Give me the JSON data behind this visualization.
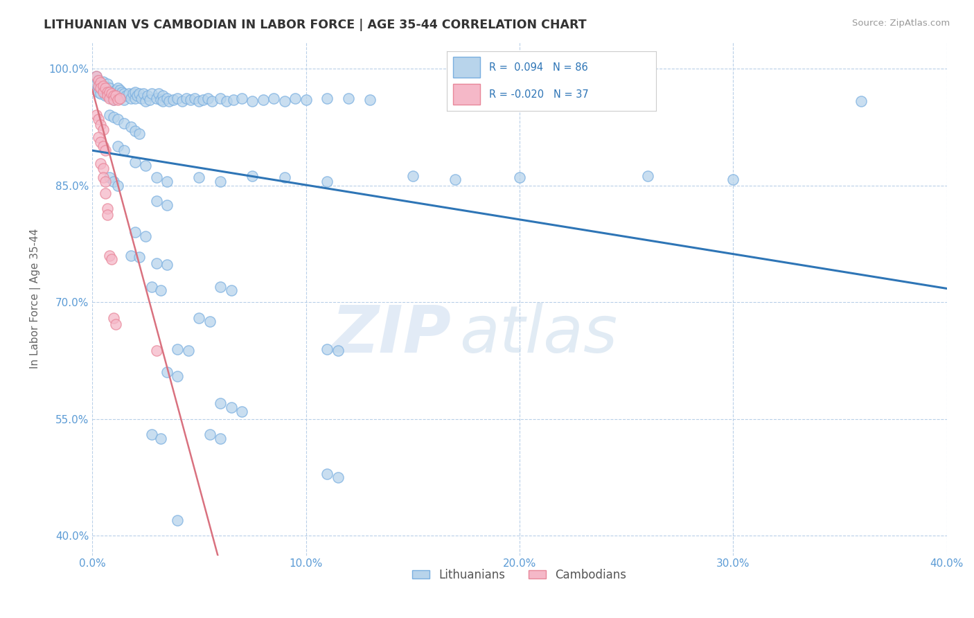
{
  "title": "LITHUANIAN VS CAMBODIAN IN LABOR FORCE | AGE 35-44 CORRELATION CHART",
  "source": "Source: ZipAtlas.com",
  "ylabel": "In Labor Force | Age 35-44",
  "xlim": [
    0.0,
    0.4
  ],
  "ylim": [
    0.375,
    1.035
  ],
  "yticks": [
    0.4,
    0.55,
    0.7,
    0.85,
    1.0
  ],
  "ytick_labels": [
    "40.0%",
    "55.0%",
    "70.0%",
    "85.0%",
    "100.0%"
  ],
  "xticks": [
    0.0,
    0.1,
    0.2,
    0.3,
    0.4
  ],
  "xtick_labels": [
    "0.0%",
    "10.0%",
    "20.0%",
    "30.0%",
    "40.0%"
  ],
  "axis_color": "#5b9bd5",
  "blue_color_face": "#b8d4eb",
  "blue_color_edge": "#7aafe0",
  "pink_color_face": "#f5b8c8",
  "pink_color_edge": "#e8879a",
  "blue_line_color": "#2e75b6",
  "pink_line_color": "#d9717f",
  "watermark_zip_color": "#d0dff0",
  "watermark_atlas_color": "#c5d8ea",
  "legend_r_color": "#2e75b6",
  "blue_scatter": [
    [
      0.002,
      0.99
    ],
    [
      0.002,
      0.98
    ],
    [
      0.003,
      0.985
    ],
    [
      0.003,
      0.975
    ],
    [
      0.003,
      0.97
    ],
    [
      0.004,
      0.98
    ],
    [
      0.004,
      0.968
    ],
    [
      0.005,
      0.978
    ],
    [
      0.005,
      0.983
    ],
    [
      0.006,
      0.975
    ],
    [
      0.006,
      0.965
    ],
    [
      0.007,
      0.972
    ],
    [
      0.007,
      0.98
    ],
    [
      0.008,
      0.965
    ],
    [
      0.008,
      0.975
    ],
    [
      0.009,
      0.97
    ],
    [
      0.009,
      0.962
    ],
    [
      0.01,
      0.968
    ],
    [
      0.01,
      0.96
    ],
    [
      0.011,
      0.965
    ],
    [
      0.011,
      0.972
    ],
    [
      0.012,
      0.975
    ],
    [
      0.012,
      0.968
    ],
    [
      0.013,
      0.972
    ],
    [
      0.014,
      0.97
    ],
    [
      0.015,
      0.968
    ],
    [
      0.015,
      0.96
    ],
    [
      0.016,
      0.965
    ],
    [
      0.017,
      0.968
    ],
    [
      0.018,
      0.962
    ],
    [
      0.019,
      0.968
    ],
    [
      0.02,
      0.962
    ],
    [
      0.02,
      0.97
    ],
    [
      0.021,
      0.965
    ],
    [
      0.022,
      0.968
    ],
    [
      0.023,
      0.962
    ],
    [
      0.024,
      0.968
    ],
    [
      0.025,
      0.958
    ],
    [
      0.026,
      0.965
    ],
    [
      0.027,
      0.96
    ],
    [
      0.028,
      0.968
    ],
    [
      0.03,
      0.962
    ],
    [
      0.031,
      0.968
    ],
    [
      0.032,
      0.96
    ],
    [
      0.033,
      0.965
    ],
    [
      0.033,
      0.958
    ],
    [
      0.035,
      0.962
    ],
    [
      0.036,
      0.958
    ],
    [
      0.038,
      0.96
    ],
    [
      0.04,
      0.962
    ],
    [
      0.042,
      0.958
    ],
    [
      0.044,
      0.962
    ],
    [
      0.046,
      0.96
    ],
    [
      0.048,
      0.962
    ],
    [
      0.05,
      0.958
    ],
    [
      0.052,
      0.96
    ],
    [
      0.054,
      0.962
    ],
    [
      0.056,
      0.958
    ],
    [
      0.06,
      0.962
    ],
    [
      0.063,
      0.958
    ],
    [
      0.066,
      0.96
    ],
    [
      0.07,
      0.962
    ],
    [
      0.075,
      0.958
    ],
    [
      0.08,
      0.96
    ],
    [
      0.085,
      0.962
    ],
    [
      0.09,
      0.958
    ],
    [
      0.095,
      0.962
    ],
    [
      0.1,
      0.96
    ],
    [
      0.11,
      0.962
    ],
    [
      0.12,
      0.962
    ],
    [
      0.13,
      0.96
    ],
    [
      0.008,
      0.94
    ],
    [
      0.01,
      0.938
    ],
    [
      0.012,
      0.935
    ],
    [
      0.015,
      0.93
    ],
    [
      0.018,
      0.925
    ],
    [
      0.02,
      0.92
    ],
    [
      0.022,
      0.916
    ],
    [
      0.012,
      0.9
    ],
    [
      0.015,
      0.895
    ],
    [
      0.02,
      0.88
    ],
    [
      0.025,
      0.875
    ],
    [
      0.008,
      0.86
    ],
    [
      0.01,
      0.855
    ],
    [
      0.012,
      0.85
    ],
    [
      0.03,
      0.86
    ],
    [
      0.035,
      0.855
    ],
    [
      0.05,
      0.86
    ],
    [
      0.06,
      0.855
    ],
    [
      0.075,
      0.862
    ],
    [
      0.09,
      0.86
    ],
    [
      0.11,
      0.855
    ],
    [
      0.15,
      0.862
    ],
    [
      0.17,
      0.858
    ],
    [
      0.2,
      0.86
    ],
    [
      0.26,
      0.862
    ],
    [
      0.3,
      0.858
    ],
    [
      0.03,
      0.83
    ],
    [
      0.035,
      0.825
    ],
    [
      0.02,
      0.79
    ],
    [
      0.025,
      0.785
    ],
    [
      0.018,
      0.76
    ],
    [
      0.022,
      0.758
    ],
    [
      0.03,
      0.75
    ],
    [
      0.035,
      0.748
    ],
    [
      0.028,
      0.72
    ],
    [
      0.032,
      0.715
    ],
    [
      0.06,
      0.72
    ],
    [
      0.065,
      0.715
    ],
    [
      0.05,
      0.68
    ],
    [
      0.055,
      0.675
    ],
    [
      0.04,
      0.64
    ],
    [
      0.045,
      0.638
    ],
    [
      0.11,
      0.64
    ],
    [
      0.115,
      0.638
    ],
    [
      0.035,
      0.61
    ],
    [
      0.04,
      0.605
    ],
    [
      0.06,
      0.57
    ],
    [
      0.065,
      0.565
    ],
    [
      0.07,
      0.56
    ],
    [
      0.028,
      0.53
    ],
    [
      0.032,
      0.525
    ],
    [
      0.055,
      0.53
    ],
    [
      0.06,
      0.525
    ],
    [
      0.11,
      0.48
    ],
    [
      0.115,
      0.475
    ],
    [
      0.04,
      0.42
    ],
    [
      0.36,
      0.958
    ]
  ],
  "pink_scatter": [
    [
      0.002,
      0.99
    ],
    [
      0.003,
      0.985
    ],
    [
      0.003,
      0.978
    ],
    [
      0.004,
      0.982
    ],
    [
      0.004,
      0.975
    ],
    [
      0.005,
      0.978
    ],
    [
      0.005,
      0.97
    ],
    [
      0.006,
      0.975
    ],
    [
      0.007,
      0.97
    ],
    [
      0.007,
      0.965
    ],
    [
      0.008,
      0.97
    ],
    [
      0.008,
      0.962
    ],
    [
      0.009,
      0.968
    ],
    [
      0.01,
      0.965
    ],
    [
      0.01,
      0.96
    ],
    [
      0.011,
      0.965
    ],
    [
      0.012,
      0.96
    ],
    [
      0.013,
      0.962
    ],
    [
      0.002,
      0.94
    ],
    [
      0.003,
      0.935
    ],
    [
      0.004,
      0.928
    ],
    [
      0.005,
      0.922
    ],
    [
      0.003,
      0.912
    ],
    [
      0.004,
      0.906
    ],
    [
      0.005,
      0.9
    ],
    [
      0.006,
      0.895
    ],
    [
      0.004,
      0.878
    ],
    [
      0.005,
      0.872
    ],
    [
      0.005,
      0.86
    ],
    [
      0.006,
      0.855
    ],
    [
      0.006,
      0.84
    ],
    [
      0.007,
      0.82
    ],
    [
      0.007,
      0.812
    ],
    [
      0.008,
      0.76
    ],
    [
      0.009,
      0.755
    ],
    [
      0.01,
      0.68
    ],
    [
      0.011,
      0.672
    ],
    [
      0.03,
      0.638
    ]
  ]
}
